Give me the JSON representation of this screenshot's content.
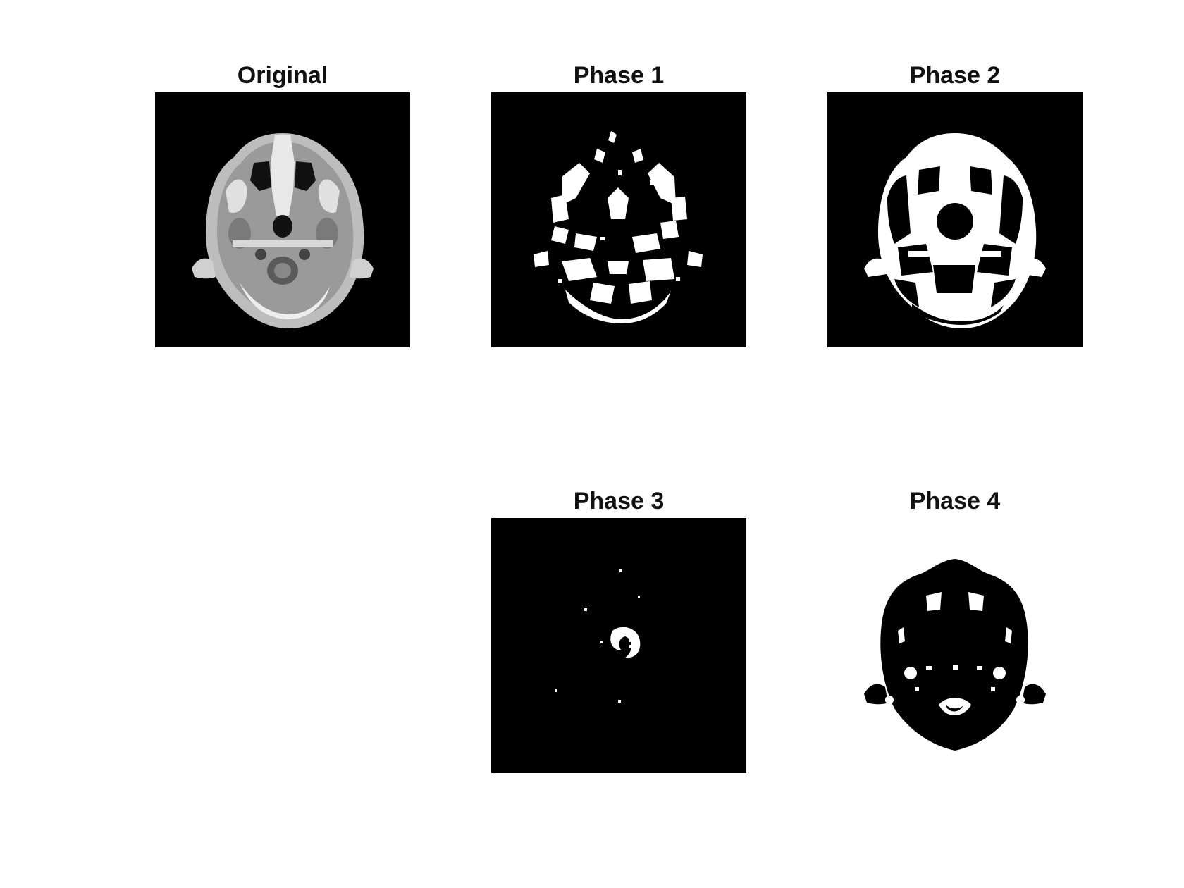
{
  "figure": {
    "panels": [
      {
        "title": "Original",
        "image": "axial head MRI slice (grayscale)"
      },
      {
        "title": "Phase 1",
        "image": "binary segmentation mask"
      },
      {
        "title": "Phase 2",
        "image": "binary segmentation mask"
      },
      {
        "title": "Phase 3",
        "image": "binary segmentation mask"
      },
      {
        "title": "Phase 4",
        "image": "binary segmentation mask"
      }
    ]
  }
}
